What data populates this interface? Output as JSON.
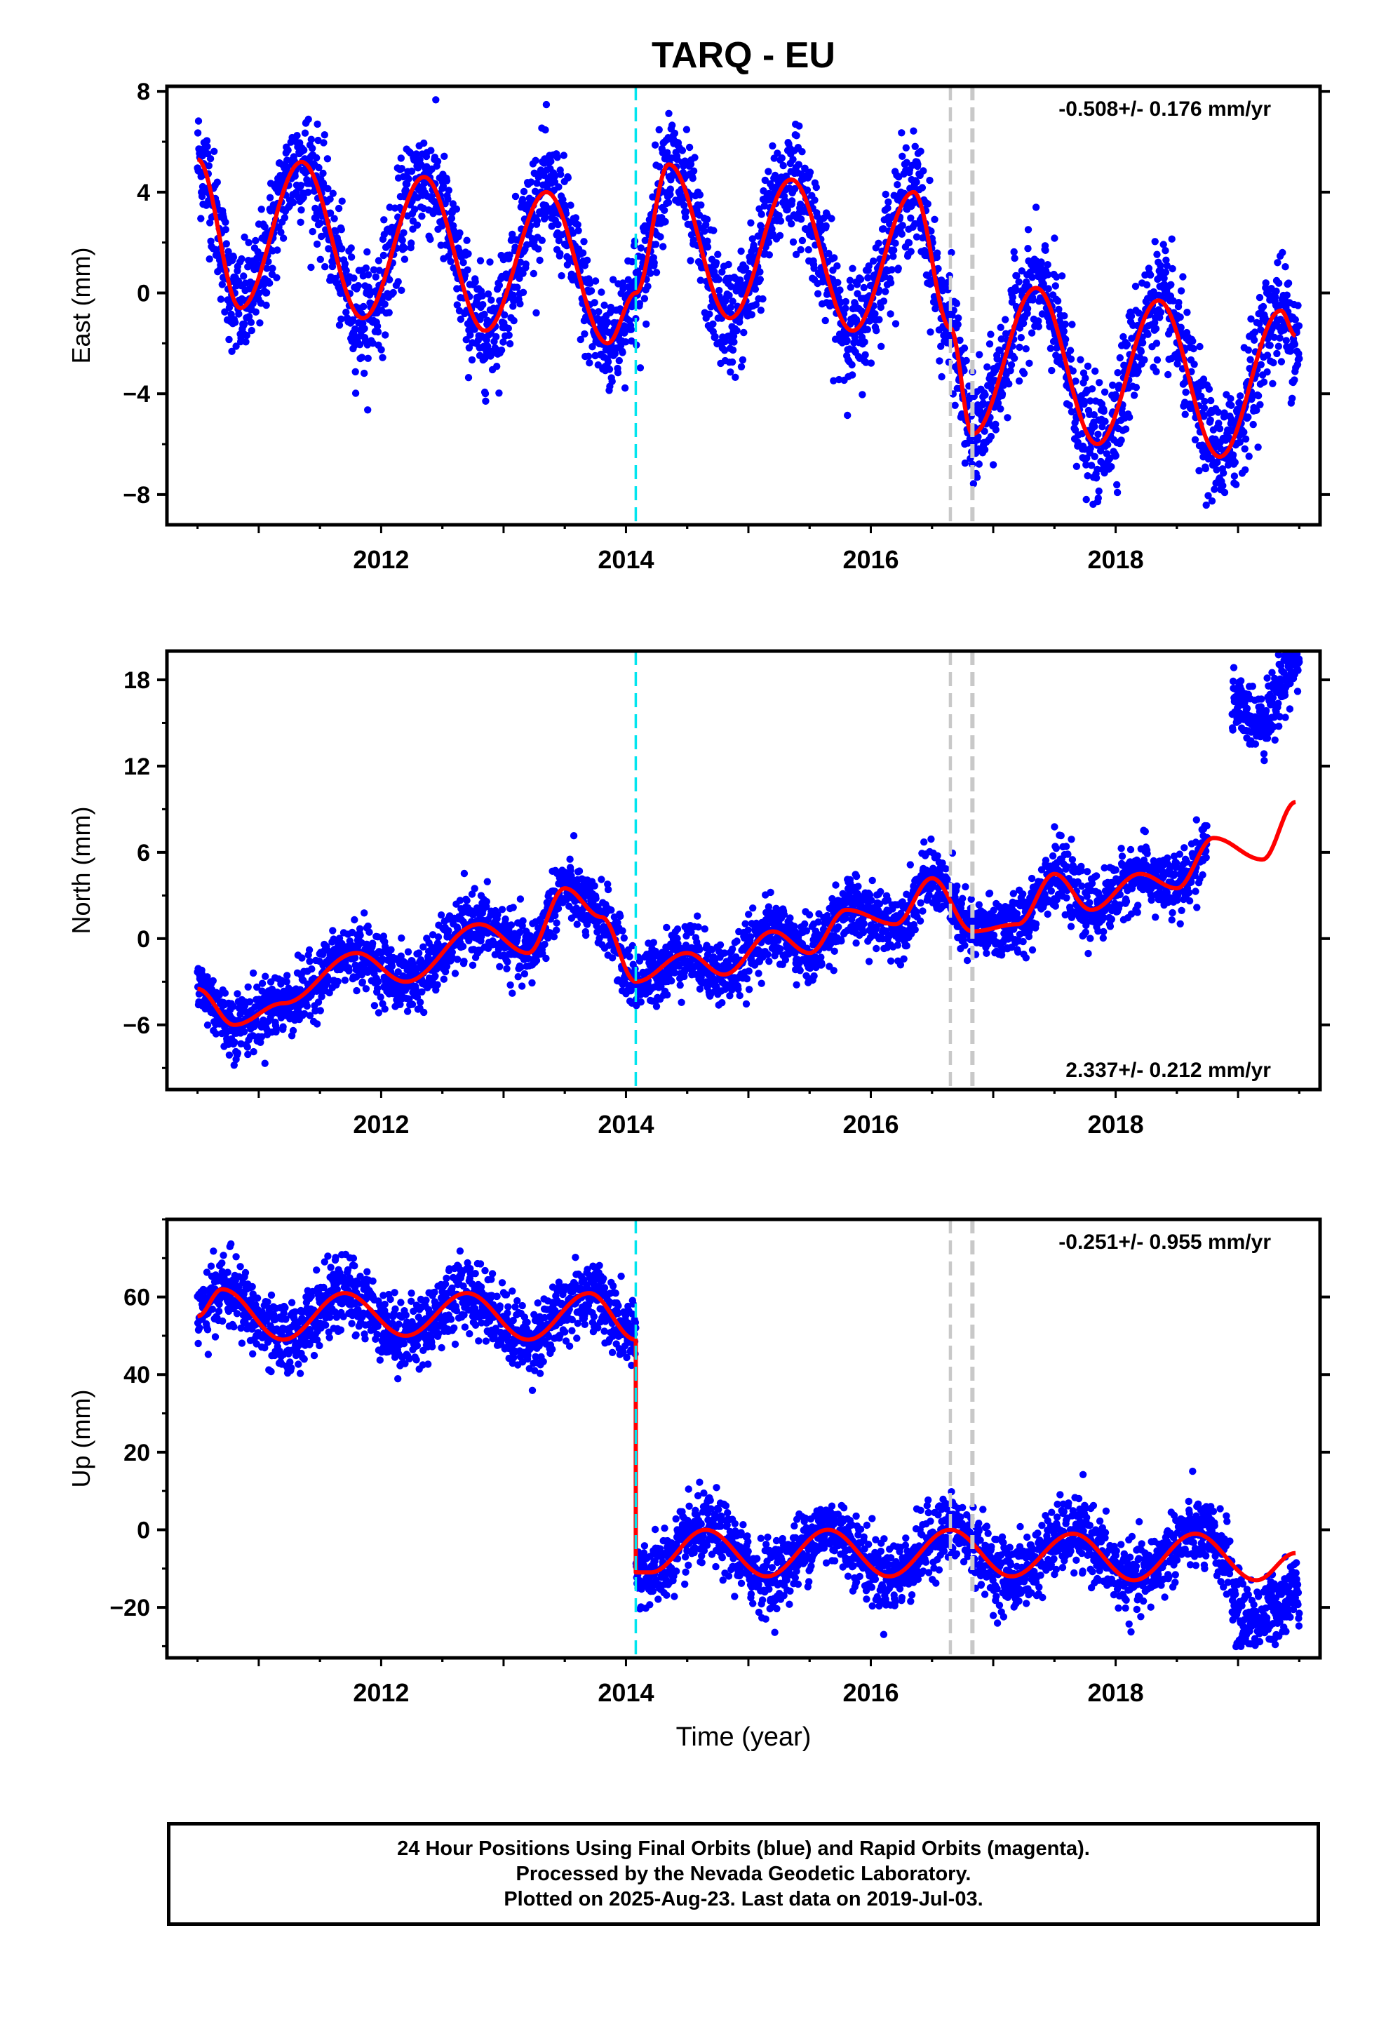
{
  "title": "TARQ - EU",
  "colors": {
    "points": "#0000ff",
    "model": "#ff0000",
    "antenna_change_line": "#00e5ee",
    "equipment_line": "#c8c8c8",
    "axes": "#000000"
  },
  "xlabel": "Time (year)",
  "x_range": [
    2010.25,
    2019.67
  ],
  "x_tick_labels": [
    "2012",
    "2014",
    "2016",
    "2018"
  ],
  "vertical_lines": [
    {
      "x": 2014.08,
      "color": "cyan",
      "style": "dashed"
    },
    {
      "x": 2016.65,
      "color": "gray",
      "style": "dashed"
    },
    {
      "x": 2016.83,
      "color": "gray",
      "style": "dashed"
    }
  ],
  "chart_data": [
    {
      "type": "scatter",
      "component": "East",
      "ylabel": "East (mm)",
      "ylim": [
        -9.2,
        8.2
      ],
      "y_ticks": [
        -8,
        -4,
        0,
        4,
        8
      ],
      "rate_text": "-0.508+/- 0.176 mm/yr",
      "rate_position": "top-right",
      "series": [
        {
          "name": "Final Orbits (blue)",
          "style": "points",
          "noise": 1.1,
          "approx_points": 3400
        },
        {
          "style": "line",
          "x": [
            2010.5,
            2010.85,
            2011.35,
            2011.85,
            2012.35,
            2012.85,
            2013.35,
            2013.85,
            2014.08,
            2014.35,
            2014.85,
            2015.35,
            2015.85,
            2016.35,
            2016.65,
            2016.83,
            2017.35,
            2017.85,
            2018.35,
            2018.85,
            2019.35,
            2019.47
          ],
          "y": [
            5.3,
            -0.6,
            5.2,
            -1.0,
            4.6,
            -1.5,
            4.0,
            -2.0,
            0.0,
            5.1,
            -1.0,
            4.5,
            -1.5,
            4.0,
            -1.4,
            -5.6,
            0.2,
            -6.0,
            -0.3,
            -6.5,
            -0.7,
            -1.7
          ]
        }
      ]
    },
    {
      "type": "scatter",
      "component": "North",
      "ylabel": "North (mm)",
      "ylim": [
        -10.5,
        20.0
      ],
      "y_ticks": [
        -6,
        0,
        6,
        12,
        18
      ],
      "rate_text": "2.337+/- 0.212 mm/yr",
      "rate_position": "bottom-right",
      "series": [
        {
          "name": "Final Orbits (blue)",
          "style": "points",
          "noise": 1.1,
          "approx_points": 3400,
          "offset_after": {
            "x": 2018.8,
            "dy": 9.8
          }
        },
        {
          "style": "line",
          "x": [
            2010.5,
            2010.8,
            2011.2,
            2011.8,
            2012.2,
            2012.8,
            2013.2,
            2013.5,
            2013.8,
            2014.08,
            2014.5,
            2014.8,
            2015.2,
            2015.5,
            2015.8,
            2016.2,
            2016.5,
            2016.83,
            2017.2,
            2017.5,
            2017.8,
            2018.2,
            2018.5,
            2018.8,
            2019.2,
            2019.47
          ],
          "y": [
            -3.5,
            -6.0,
            -4.5,
            -1.0,
            -3.0,
            1.0,
            -1.0,
            3.5,
            1.5,
            -3.0,
            -1.0,
            -2.5,
            0.5,
            -1.0,
            2.0,
            1.0,
            4.2,
            0.5,
            1.0,
            4.5,
            2.0,
            4.5,
            3.5,
            7.0,
            5.5,
            9.5
          ]
        }
      ]
    },
    {
      "type": "scatter",
      "component": "Up",
      "ylabel": "Up (mm)",
      "ylim": [
        -33,
        80
      ],
      "y_ticks": [
        -20,
        0,
        20,
        40,
        60
      ],
      "rate_text": "-0.251+/- 0.955 mm/yr",
      "rate_position": "top-right",
      "series": [
        {
          "name": "Final Orbits (blue)",
          "style": "points",
          "noise": 4.5,
          "approx_points": 3400,
          "offset_after": {
            "x": 2018.95,
            "dy": -10
          }
        },
        {
          "style": "line",
          "x": [
            2010.5,
            2010.7,
            2011.2,
            2011.7,
            2012.2,
            2012.7,
            2013.2,
            2013.7,
            2014.08,
            2014.08,
            2014.2,
            2014.65,
            2015.15,
            2015.65,
            2016.15,
            2016.65,
            2017.15,
            2017.65,
            2018.15,
            2018.65,
            2019.15,
            2019.47
          ],
          "y": [
            55,
            62,
            49,
            61,
            50,
            61,
            49,
            61,
            49,
            -11,
            -11,
            0,
            -12,
            0,
            -12,
            0,
            -12,
            -1,
            -13,
            -1,
            -13,
            -6
          ]
        }
      ]
    }
  ],
  "footer": {
    "line1": "24 Hour Positions Using Final Orbits (blue) and Rapid Orbits (magenta).",
    "line2": "Processed by the Nevada Geodetic Laboratory.",
    "line3": "Plotted on 2025-Aug-23. Last data on 2019-Jul-03."
  }
}
